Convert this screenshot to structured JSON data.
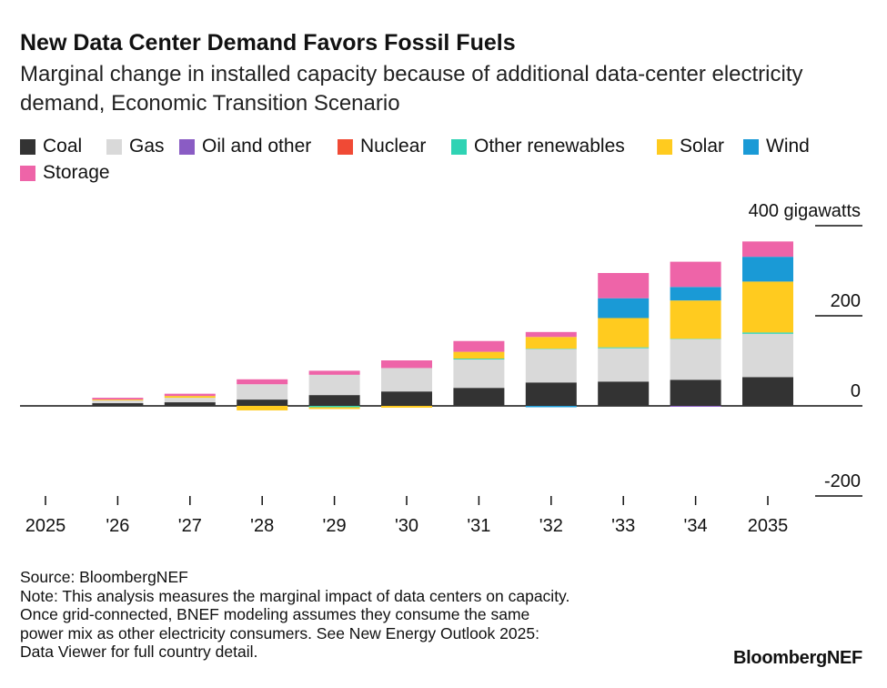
{
  "header": {
    "title": "New Data Center Demand Favors Fossil Fuels",
    "subtitle": "Marginal change in installed capacity because of additional data-center electricity demand, Economic Transition Scenario"
  },
  "chart_data": {
    "type": "bar",
    "stacked": true,
    "title": "New Data Center Demand Favors Fossil Fuels",
    "subtitle": "Marginal change in installed capacity because of additional data-center electricity demand, Economic Transition Scenario",
    "xlabel": "",
    "ylabel": "",
    "y_unit_label": "400 gigawatts",
    "ylim": [
      -200,
      400
    ],
    "y_ticks": [
      {
        "value": 400,
        "label": "400 gigawatts"
      },
      {
        "value": 200,
        "label": "200"
      },
      {
        "value": 0,
        "label": "0"
      },
      {
        "value": -200,
        "label": "-200"
      }
    ],
    "grid": false,
    "legend_position": "top-left",
    "categories": [
      "2025",
      "'26",
      "'27",
      "'28",
      "'29",
      "'30",
      "'31",
      "'32",
      "'33",
      "'34",
      "2035"
    ],
    "series": [
      {
        "name": "Coal",
        "color": "#333333",
        "values": [
          0,
          6,
          8,
          14,
          24,
          32,
          40,
          52,
          54,
          58,
          64
        ]
      },
      {
        "name": "Gas",
        "color": "#d9d9d9",
        "values": [
          0,
          6,
          10,
          34,
          45,
          52,
          63,
          74,
          74,
          90,
          96
        ]
      },
      {
        "name": "Oil and other",
        "color": "#8a5cc4",
        "values": [
          0,
          0,
          0,
          0,
          0,
          0,
          0,
          0,
          0,
          -2,
          0
        ]
      },
      {
        "name": "Nuclear",
        "color": "#f04a35",
        "values": [
          0,
          0,
          0,
          0,
          0,
          0,
          0,
          0,
          0,
          0,
          0
        ]
      },
      {
        "name": "Other renewables",
        "color": "#2fd3b4",
        "values": [
          0,
          0,
          0,
          0,
          -3,
          0,
          2,
          1,
          2,
          1,
          3
        ]
      },
      {
        "name": "Solar",
        "color": "#ffcb1f",
        "values": [
          0,
          2,
          4,
          -10,
          -4,
          -4,
          15,
          26,
          65,
          85,
          113
        ]
      },
      {
        "name": "Wind",
        "color": "#1a9ad6",
        "values": [
          0,
          0,
          0,
          0,
          0,
          0,
          0,
          -3,
          44,
          30,
          55
        ]
      },
      {
        "name": "Storage",
        "color": "#ee64a8",
        "values": [
          0,
          4,
          5,
          11,
          9,
          17,
          24,
          11,
          56,
          56,
          34
        ]
      }
    ]
  },
  "footer": {
    "source": "Source: BloombergNEF",
    "note_lines": [
      "Note: This analysis measures the marginal impact of data centers on capacity.",
      "Once grid-connected, BNEF modeling assumes they consume the same",
      "power mix as other electricity consumers. See New Energy Outlook 2025:",
      "Data Viewer for full country detail."
    ],
    "brand": "BloombergNEF"
  }
}
